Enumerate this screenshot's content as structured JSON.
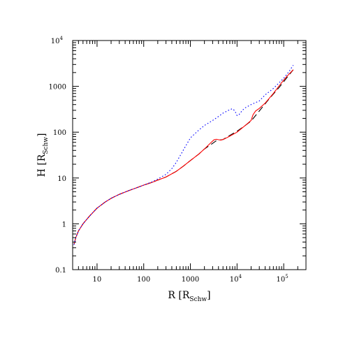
{
  "chart_data": {
    "type": "line",
    "title": "",
    "xlabel": {
      "main": "R [R",
      "sub": "Schw",
      "close": "]"
    },
    "ylabel": {
      "main": "H [R",
      "sub": "Schw",
      "close": "]"
    },
    "xscale": "log",
    "yscale": "log",
    "xlim": [
      3,
      300000
    ],
    "ylim": [
      0.1,
      10000
    ],
    "grid": false,
    "legend": "none",
    "x_ticks": [
      {
        "value": 10,
        "label": "10",
        "sup": ""
      },
      {
        "value": 100,
        "label": "100",
        "sup": ""
      },
      {
        "value": 1000,
        "label": "1000",
        "sup": ""
      },
      {
        "value": 10000,
        "label": "10",
        "sup": "4"
      },
      {
        "value": 100000,
        "label": "10",
        "sup": "5"
      }
    ],
    "y_ticks": [
      {
        "value": 0.1,
        "label": "0.1",
        "sup": ""
      },
      {
        "value": 1,
        "label": "1",
        "sup": ""
      },
      {
        "value": 10,
        "label": "10",
        "sup": ""
      },
      {
        "value": 100,
        "label": "100",
        "sup": ""
      },
      {
        "value": 1000,
        "label": "1000",
        "sup": ""
      },
      {
        "value": 10000,
        "label": "10",
        "sup": "4"
      }
    ],
    "series": [
      {
        "style": "dashed",
        "color": "#000000",
        "points": [
          [
            3.2,
            0.35
          ],
          [
            3.5,
            0.5
          ],
          [
            4,
            0.7
          ],
          [
            5,
            1.0
          ],
          [
            7,
            1.5
          ],
          [
            10,
            2.2
          ],
          [
            15,
            3.0
          ],
          [
            20,
            3.6
          ],
          [
            30,
            4.4
          ],
          [
            50,
            5.4
          ],
          [
            70,
            6.1
          ],
          [
            100,
            7.0
          ],
          [
            150,
            8.0
          ],
          [
            200,
            9.0
          ],
          [
            300,
            10.5
          ],
          [
            500,
            14
          ],
          [
            700,
            18
          ],
          [
            1000,
            24
          ],
          [
            1500,
            33
          ],
          [
            2000,
            43
          ],
          [
            3000,
            57
          ],
          [
            3500,
            64
          ],
          [
            4000,
            67
          ],
          [
            5000,
            69
          ],
          [
            7000,
            85
          ],
          [
            10000,
            105
          ],
          [
            15000,
            140
          ],
          [
            20000,
            175
          ],
          [
            30000,
            290
          ],
          [
            50000,
            550
          ],
          [
            80000,
            950
          ],
          [
            120000,
            1600
          ],
          [
            160000,
            2300
          ]
        ]
      },
      {
        "style": "solid",
        "color": "#ff0000",
        "points": [
          [
            3.2,
            0.35
          ],
          [
            3.5,
            0.5
          ],
          [
            4,
            0.7
          ],
          [
            5,
            1.0
          ],
          [
            7,
            1.5
          ],
          [
            10,
            2.2
          ],
          [
            15,
            3.0
          ],
          [
            20,
            3.6
          ],
          [
            30,
            4.4
          ],
          [
            50,
            5.4
          ],
          [
            70,
            6.1
          ],
          [
            100,
            7.0
          ],
          [
            150,
            8.0
          ],
          [
            200,
            9.0
          ],
          [
            300,
            10.5
          ],
          [
            500,
            14
          ],
          [
            700,
            18
          ],
          [
            1000,
            24
          ],
          [
            1500,
            33
          ],
          [
            2000,
            43
          ],
          [
            2800,
            60
          ],
          [
            3200,
            68
          ],
          [
            3600,
            70
          ],
          [
            4500,
            67
          ],
          [
            5500,
            72
          ],
          [
            7000,
            82
          ],
          [
            10000,
            100
          ],
          [
            15000,
            140
          ],
          [
            20000,
            180
          ],
          [
            22000,
            240
          ],
          [
            25000,
            290
          ],
          [
            30000,
            330
          ],
          [
            40000,
            430
          ],
          [
            60000,
            700
          ],
          [
            90000,
            1200
          ],
          [
            120000,
            1700
          ],
          [
            160000,
            2300
          ]
        ]
      },
      {
        "style": "dotted",
        "color": "#0000ff",
        "points": [
          [
            3.2,
            0.35
          ],
          [
            3.5,
            0.5
          ],
          [
            4,
            0.7
          ],
          [
            5,
            1.0
          ],
          [
            7,
            1.5
          ],
          [
            10,
            2.2
          ],
          [
            15,
            3.0
          ],
          [
            20,
            3.6
          ],
          [
            30,
            4.4
          ],
          [
            50,
            5.4
          ],
          [
            70,
            6.1
          ],
          [
            100,
            7.0
          ],
          [
            150,
            8.2
          ],
          [
            200,
            9.5
          ],
          [
            300,
            12
          ],
          [
            400,
            16
          ],
          [
            500,
            22
          ],
          [
            700,
            40
          ],
          [
            1000,
            75
          ],
          [
            1500,
            110
          ],
          [
            2000,
            140
          ],
          [
            3000,
            180
          ],
          [
            4000,
            220
          ],
          [
            5000,
            260
          ],
          [
            7000,
            310
          ],
          [
            8000,
            325
          ],
          [
            9000,
            290
          ],
          [
            10000,
            230
          ],
          [
            11000,
            240
          ],
          [
            13000,
            300
          ],
          [
            15000,
            340
          ],
          [
            20000,
            400
          ],
          [
            30000,
            480
          ],
          [
            40000,
            650
          ],
          [
            60000,
            900
          ],
          [
            80000,
            1200
          ],
          [
            100000,
            1500
          ],
          [
            130000,
            2100
          ],
          [
            160000,
            2900
          ]
        ]
      }
    ]
  }
}
